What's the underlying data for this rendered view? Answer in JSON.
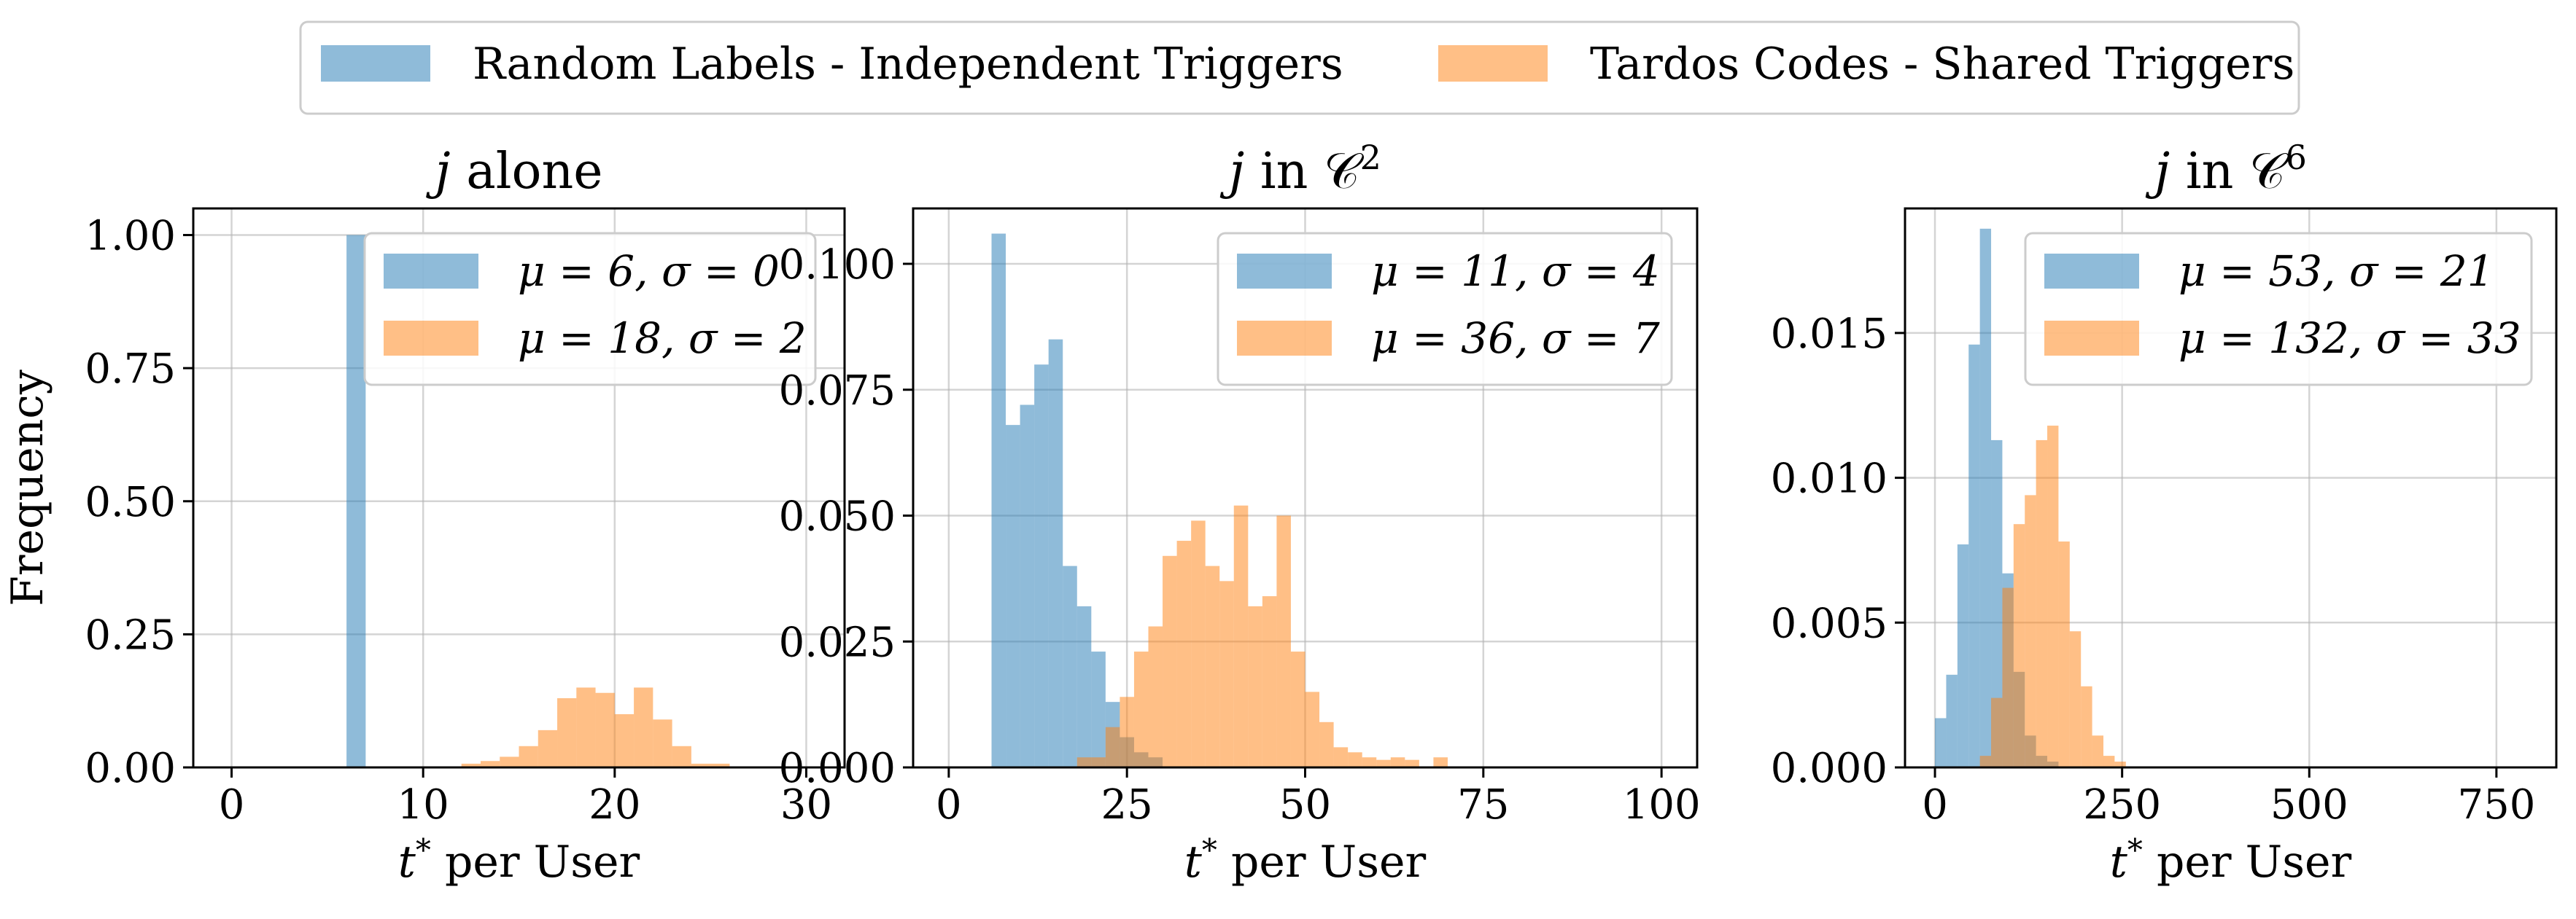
{
  "figure_legend": [
    {
      "label": "Random Labels - Independent Triggers",
      "color": "#1f77b4"
    },
    {
      "label": "Tardos Codes - Shared Triggers",
      "color": "#ff7f0e"
    }
  ],
  "colors": {
    "blue": "#1f77b4",
    "orange": "#ff7f0e",
    "alpha": 0.5
  },
  "chart_data": [
    {
      "type": "histogram",
      "title_var": "j",
      "title_rest": " alone",
      "title_sup": "",
      "xlabel_var": "t",
      "xlabel_sup": "*",
      "xlabel_rest": " per User",
      "ylabel": "Frequency",
      "xlim": [
        -2,
        32
      ],
      "ylim": [
        0,
        1.05
      ],
      "xticks": [
        0,
        10,
        20,
        30
      ],
      "xtick_labels": [
        "0",
        "10",
        "20",
        "30"
      ],
      "yticks": [
        0,
        0.25,
        0.5,
        0.75,
        1.0
      ],
      "ytick_labels": [
        "0.00",
        "0.25",
        "0.50",
        "0.75",
        "1.00"
      ],
      "legend": [
        "μ = 6, σ = 0",
        "μ = 18, σ = 2"
      ],
      "series": [
        {
          "name": "Random Labels - Independent Triggers",
          "color": "blue",
          "bins": [
            [
              6,
              7,
              1.0
            ]
          ]
        },
        {
          "name": "Tardos Codes - Shared Triggers",
          "color": "orange",
          "bins": [
            [
              12,
              13,
              0.007
            ],
            [
              13,
              14,
              0.012
            ],
            [
              14,
              15,
              0.02
            ],
            [
              15,
              16,
              0.04
            ],
            [
              16,
              17,
              0.07
            ],
            [
              17,
              18,
              0.13
            ],
            [
              18,
              19,
              0.15
            ],
            [
              19,
              20,
              0.14
            ],
            [
              20,
              21,
              0.1
            ],
            [
              21,
              22,
              0.15
            ],
            [
              22,
              23,
              0.09
            ],
            [
              23,
              24,
              0.04
            ],
            [
              24,
              26,
              0.007
            ]
          ]
        }
      ]
    },
    {
      "type": "histogram",
      "title_var": "j",
      "title_rest": " in 𝒞",
      "title_sup": "2",
      "xlabel_var": "t",
      "xlabel_sup": "*",
      "xlabel_rest": " per User",
      "ylabel": "",
      "xlim": [
        -5,
        105
      ],
      "ylim": [
        0,
        0.111
      ],
      "xticks": [
        0,
        25,
        50,
        75,
        100
      ],
      "xtick_labels": [
        "0",
        "25",
        "50",
        "75",
        "100"
      ],
      "yticks": [
        0,
        0.025,
        0.05,
        0.075,
        0.1
      ],
      "ytick_labels": [
        "0.000",
        "0.025",
        "0.050",
        "0.075",
        "0.100"
      ],
      "legend": [
        "μ = 11, σ = 4",
        "μ = 36, σ = 7"
      ],
      "series": [
        {
          "name": "Random Labels - Independent Triggers",
          "color": "blue",
          "bins": [
            [
              6,
              8,
              0.106
            ],
            [
              8,
              10,
              0.068
            ],
            [
              10,
              12,
              0.072
            ],
            [
              12,
              14,
              0.08
            ],
            [
              14,
              16,
              0.085
            ],
            [
              16,
              18,
              0.04
            ],
            [
              18,
              20,
              0.032
            ],
            [
              20,
              22,
              0.023
            ],
            [
              22,
              24,
              0.013
            ],
            [
              24,
              26,
              0.006
            ],
            [
              26,
              28,
              0.003
            ],
            [
              28,
              30,
              0.002
            ]
          ]
        },
        {
          "name": "Tardos Codes - Shared Triggers",
          "color": "orange",
          "bins": [
            [
              18,
              20,
              0.002
            ],
            [
              20,
              22,
              0.002
            ],
            [
              22,
              24,
              0.008
            ],
            [
              24,
              26,
              0.014
            ],
            [
              26,
              28,
              0.023
            ],
            [
              28,
              30,
              0.028
            ],
            [
              30,
              32,
              0.042
            ],
            [
              32,
              34,
              0.045
            ],
            [
              34,
              36,
              0.049
            ],
            [
              36,
              38,
              0.04
            ],
            [
              38,
              40,
              0.037
            ],
            [
              40,
              42,
              0.052
            ],
            [
              42,
              44,
              0.032
            ],
            [
              44,
              46,
              0.034
            ],
            [
              46,
              48,
              0.05
            ],
            [
              48,
              50,
              0.023
            ],
            [
              50,
              52,
              0.015
            ],
            [
              52,
              54,
              0.009
            ],
            [
              54,
              56,
              0.004
            ],
            [
              56,
              58,
              0.003
            ],
            [
              58,
              60,
              0.002
            ],
            [
              60,
              62,
              0.0015
            ],
            [
              62,
              64,
              0.002
            ],
            [
              64,
              66,
              0.0015
            ],
            [
              68,
              70,
              0.002
            ]
          ]
        }
      ]
    },
    {
      "type": "histogram",
      "title_var": "j",
      "title_rest": " in 𝒞",
      "title_sup": "6",
      "xlabel_var": "t",
      "xlabel_sup": "*",
      "xlabel_rest": " per User",
      "ylabel": "",
      "xlim": [
        -40,
        830
      ],
      "ylim": [
        0,
        0.0193
      ],
      "xticks": [
        0,
        250,
        500,
        750
      ],
      "xtick_labels": [
        "0",
        "250",
        "500",
        "750"
      ],
      "yticks": [
        0,
        0.005,
        0.01,
        0.015
      ],
      "ytick_labels": [
        "0.000",
        "0.005",
        "0.010",
        "0.015"
      ],
      "legend": [
        "μ = 53, σ = 21",
        "μ = 132, σ = 33"
      ],
      "series": [
        {
          "name": "Random Labels - Independent Triggers",
          "color": "blue",
          "bins": [
            [
              0,
              15,
              0.0017
            ],
            [
              15,
              30,
              0.0032
            ],
            [
              30,
              45,
              0.0077
            ],
            [
              45,
              60,
              0.0146
            ],
            [
              60,
              75,
              0.0186
            ],
            [
              75,
              90,
              0.0113
            ],
            [
              90,
              105,
              0.0067
            ],
            [
              105,
              120,
              0.0033
            ],
            [
              120,
              135,
              0.0011
            ],
            [
              135,
              150,
              0.0004
            ],
            [
              150,
              165,
              0.0002
            ]
          ]
        },
        {
          "name": "Tardos Codes - Shared Triggers",
          "color": "orange",
          "bins": [
            [
              60,
              75,
              0.0004
            ],
            [
              75,
              90,
              0.0024
            ],
            [
              90,
              105,
              0.0062
            ],
            [
              105,
              120,
              0.0084
            ],
            [
              120,
              135,
              0.0094
            ],
            [
              135,
              150,
              0.0113
            ],
            [
              150,
              165,
              0.0118
            ],
            [
              165,
              180,
              0.0078
            ],
            [
              180,
              195,
              0.0047
            ],
            [
              195,
              210,
              0.0028
            ],
            [
              210,
              225,
              0.0011
            ],
            [
              225,
              240,
              0.0004
            ],
            [
              240,
              255,
              0.0002
            ]
          ]
        }
      ]
    }
  ]
}
